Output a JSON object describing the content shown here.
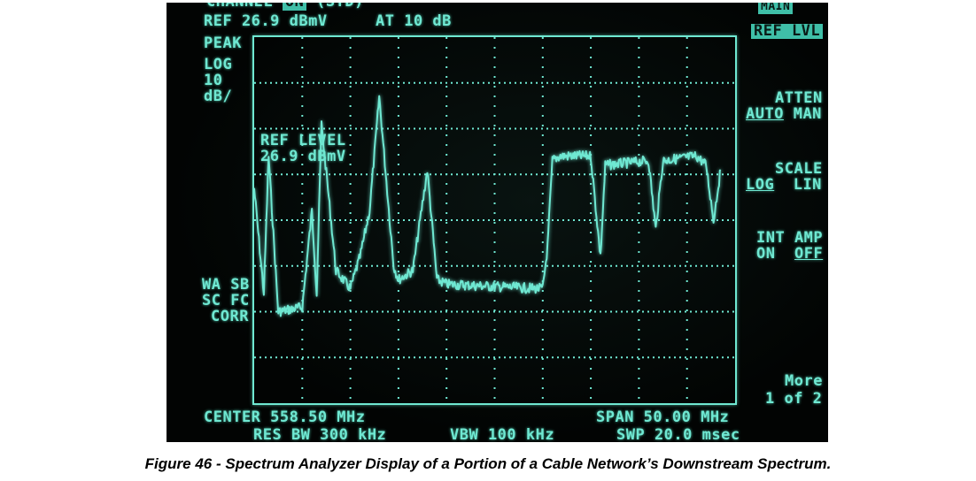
{
  "header": {
    "channel_partial": "CHANNEL",
    "channel_badge": "ON",
    "std_partial": "(STD)",
    "ref": "REF 26.9 dBmV",
    "atten": "AT 10 dB"
  },
  "left_labels": {
    "peak": "PEAK",
    "log": "LOG",
    "scale_value": "10",
    "scale_unit": "dB/",
    "wa_sb": "WA SB",
    "sc_fc": "SC FC",
    "corr": "CORR"
  },
  "marker": {
    "line1": "REF LEVEL",
    "line2": "26.9 dBmV"
  },
  "softkeys": {
    "top_badge": "MAIN",
    "ref_lvl": "REF LVL",
    "atten_title": "ATTEN",
    "atten_auto": "AUTO",
    "atten_man": "MAN",
    "scale_title": "SCALE",
    "scale_log": "LOG",
    "scale_lin": "LIN",
    "int_amp": "INT AMP",
    "int_on": "ON",
    "int_off": "OFF",
    "more": "More",
    "more_page": "1 of 2"
  },
  "footer": {
    "center": "CENTER 558.50 MHz",
    "span": "SPAN 50.00 MHz",
    "res_bw": "RES BW 300 kHz",
    "vbw": "VBW 100 kHz",
    "swp": "SWP 20.0 msec"
  },
  "caption": "Figure 46 - Spectrum Analyzer Display of a Portion of a Cable Network’s Downstream Spectrum.",
  "trace": {
    "color": "#6fe8d2",
    "ref_level_dbmv": 26.9,
    "scale_db_per_div": 10,
    "divisions": 8,
    "span_mhz": 50,
    "center_mhz": 558.5,
    "points": [
      [
        0.0,
        3.3
      ],
      [
        0.02,
        5.6
      ],
      [
        0.03,
        2.6
      ],
      [
        0.05,
        6.0
      ],
      [
        0.1,
        5.9
      ],
      [
        0.12,
        3.8
      ],
      [
        0.13,
        5.6
      ],
      [
        0.14,
        1.9
      ],
      [
        0.17,
        5.1
      ],
      [
        0.2,
        5.5
      ],
      [
        0.22,
        4.8
      ],
      [
        0.24,
        3.8
      ],
      [
        0.26,
        1.3
      ],
      [
        0.29,
        5.0
      ],
      [
        0.3,
        5.3
      ],
      [
        0.33,
        5.1
      ],
      [
        0.36,
        2.9
      ],
      [
        0.38,
        5.3
      ],
      [
        0.4,
        5.4
      ],
      [
        0.6,
        5.5
      ],
      [
        0.61,
        4.6
      ],
      [
        0.62,
        2.7
      ],
      [
        0.635,
        2.6
      ],
      [
        0.7,
        2.6
      ],
      [
        0.72,
        4.8
      ],
      [
        0.73,
        2.8
      ],
      [
        0.82,
        2.7
      ],
      [
        0.835,
        4.2
      ],
      [
        0.85,
        2.7
      ],
      [
        0.92,
        2.6
      ],
      [
        0.94,
        2.8
      ],
      [
        0.955,
        4.0
      ],
      [
        0.97,
        2.9
      ]
    ]
  }
}
